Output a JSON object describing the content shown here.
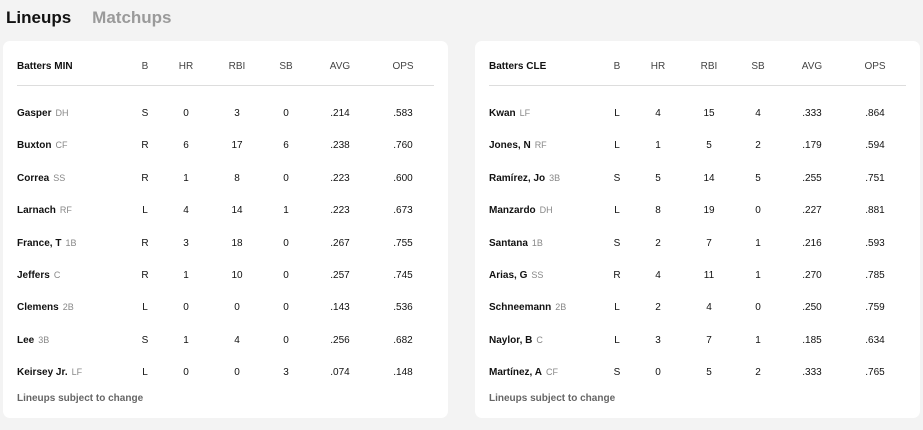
{
  "tabs": [
    {
      "label": "Lineups",
      "active": true
    },
    {
      "label": "Matchups",
      "active": false
    }
  ],
  "columns": [
    "B",
    "HR",
    "RBI",
    "SB",
    "AVG",
    "OPS"
  ],
  "teams": [
    {
      "title": "Batters MIN",
      "footer": "Lineups subject to change",
      "players": [
        {
          "name": "Gasper",
          "pos": "DH",
          "stats": [
            "S",
            "0",
            "3",
            "0",
            ".214",
            ".583"
          ]
        },
        {
          "name": "Buxton",
          "pos": "CF",
          "stats": [
            "R",
            "6",
            "17",
            "6",
            ".238",
            ".760"
          ]
        },
        {
          "name": "Correa",
          "pos": "SS",
          "stats": [
            "R",
            "1",
            "8",
            "0",
            ".223",
            ".600"
          ]
        },
        {
          "name": "Larnach",
          "pos": "RF",
          "stats": [
            "L",
            "4",
            "14",
            "1",
            ".223",
            ".673"
          ]
        },
        {
          "name": "France, T",
          "pos": "1B",
          "stats": [
            "R",
            "3",
            "18",
            "0",
            ".267",
            ".755"
          ]
        },
        {
          "name": "Jeffers",
          "pos": "C",
          "stats": [
            "R",
            "1",
            "10",
            "0",
            ".257",
            ".745"
          ]
        },
        {
          "name": "Clemens",
          "pos": "2B",
          "stats": [
            "L",
            "0",
            "0",
            "0",
            ".143",
            ".536"
          ]
        },
        {
          "name": "Lee",
          "pos": "3B",
          "stats": [
            "S",
            "1",
            "4",
            "0",
            ".256",
            ".682"
          ]
        },
        {
          "name": "Keirsey Jr.",
          "pos": "LF",
          "stats": [
            "L",
            "0",
            "0",
            "3",
            ".074",
            ".148"
          ]
        }
      ]
    },
    {
      "title": "Batters CLE",
      "footer": "Lineups subject to change",
      "players": [
        {
          "name": "Kwan",
          "pos": "LF",
          "stats": [
            "L",
            "4",
            "15",
            "4",
            ".333",
            ".864"
          ]
        },
        {
          "name": "Jones, N",
          "pos": "RF",
          "stats": [
            "L",
            "1",
            "5",
            "2",
            ".179",
            ".594"
          ]
        },
        {
          "name": "Ramírez, Jo",
          "pos": "3B",
          "stats": [
            "S",
            "5",
            "14",
            "5",
            ".255",
            ".751"
          ]
        },
        {
          "name": "Manzardo",
          "pos": "DH",
          "stats": [
            "L",
            "8",
            "19",
            "0",
            ".227",
            ".881"
          ]
        },
        {
          "name": "Santana",
          "pos": "1B",
          "stats": [
            "S",
            "2",
            "7",
            "1",
            ".216",
            ".593"
          ]
        },
        {
          "name": "Arias, G",
          "pos": "SS",
          "stats": [
            "R",
            "4",
            "11",
            "1",
            ".270",
            ".785"
          ]
        },
        {
          "name": "Schneemann",
          "pos": "2B",
          "stats": [
            "L",
            "2",
            "4",
            "0",
            ".250",
            ".759"
          ]
        },
        {
          "name": "Naylor, B",
          "pos": "C",
          "stats": [
            "L",
            "3",
            "7",
            "1",
            ".185",
            ".634"
          ]
        },
        {
          "name": "Martínez, A",
          "pos": "CF",
          "stats": [
            "S",
            "0",
            "5",
            "2",
            ".333",
            ".765"
          ]
        }
      ]
    }
  ]
}
